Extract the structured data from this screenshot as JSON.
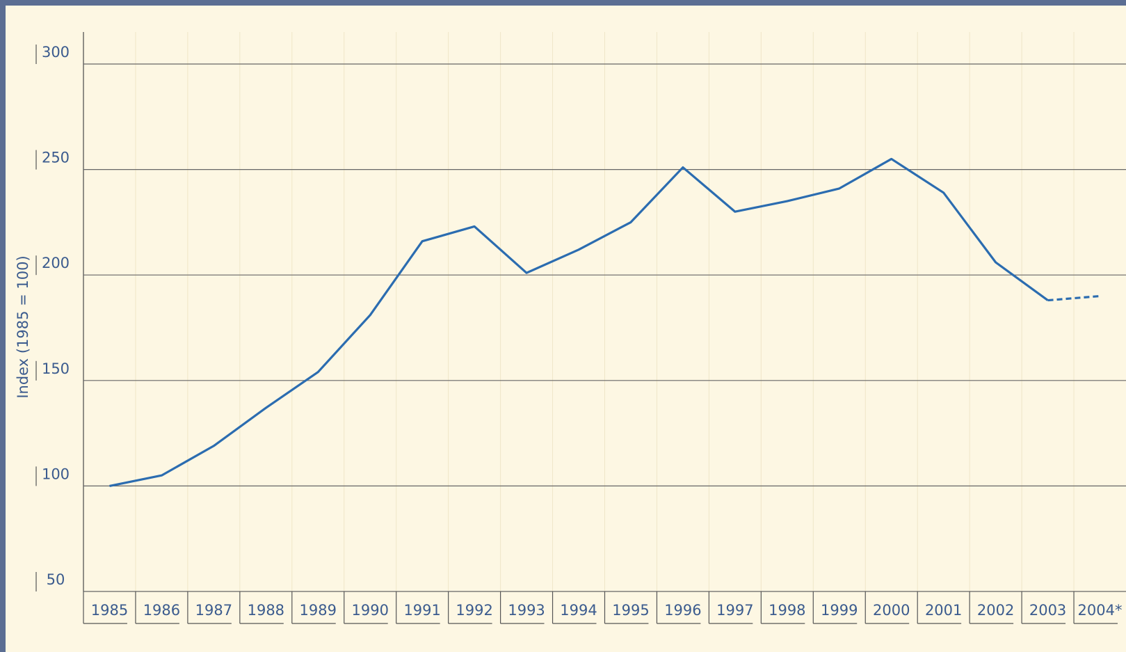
{
  "chart_data": {
    "type": "line",
    "y_label": "Index (1985 = 100)",
    "categories": [
      "1985",
      "1986",
      "1987",
      "1988",
      "1989",
      "1990",
      "1991",
      "1992",
      "1993",
      "1994",
      "1995",
      "1996",
      "1997",
      "1998",
      "1999",
      "2000",
      "2001",
      "2002",
      "2003",
      "2004*"
    ],
    "values": [
      100,
      105,
      119,
      137,
      154,
      181,
      216,
      223,
      201,
      212,
      225,
      251,
      230,
      235,
      241,
      255,
      239,
      206,
      188,
      190
    ],
    "color": "#2b6cb0",
    "last_segment_style": "dashed",
    "ylim": [
      50,
      300
    ],
    "yticks": [
      50,
      100,
      150,
      200,
      250,
      300
    ],
    "grid": true
  }
}
